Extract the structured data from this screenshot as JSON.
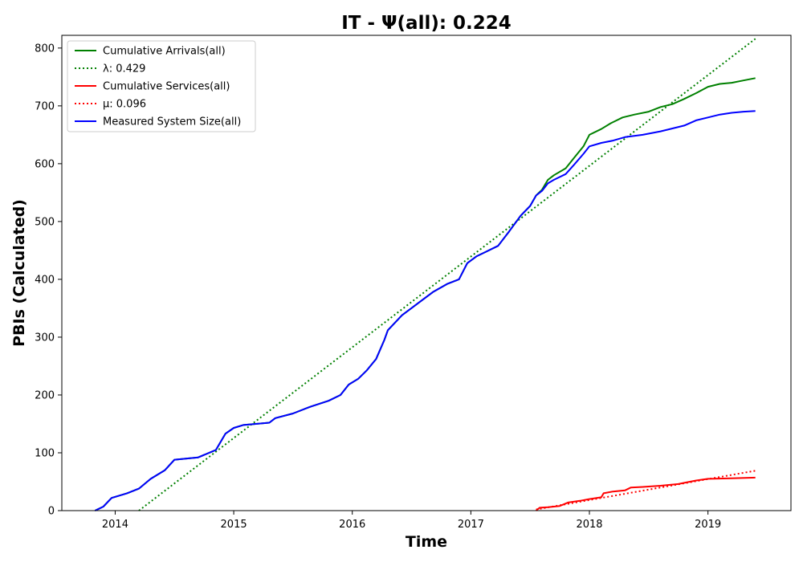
{
  "chart_data": {
    "type": "line",
    "title": "IT -  Ψ(all): 0.224",
    "xlabel": "Time",
    "ylabel": "PBIs (Calculated)",
    "xlim": [
      2013.55,
      2019.7
    ],
    "ylim": [
      0,
      822
    ],
    "x_ticks": [
      2014,
      2015,
      2016,
      2017,
      2018,
      2019
    ],
    "x_tick_labels": [
      "2014",
      "2015",
      "2016",
      "2017",
      "2018",
      "2019"
    ],
    "y_ticks": [
      0,
      100,
      200,
      300,
      400,
      500,
      600,
      700,
      800
    ],
    "y_tick_labels": [
      "0",
      "100",
      "200",
      "300",
      "400",
      "500",
      "600",
      "700",
      "800"
    ],
    "grid": false,
    "legend_position": "upper-left",
    "series": [
      {
        "name": "Cumulative Arrivals(all)",
        "color": "#008000",
        "style": "solid",
        "points": [
          [
            2013.83,
            0
          ],
          [
            2013.9,
            7
          ],
          [
            2013.97,
            22
          ],
          [
            2014.1,
            30
          ],
          [
            2014.2,
            38
          ],
          [
            2014.3,
            55
          ],
          [
            2014.42,
            70
          ],
          [
            2014.5,
            88
          ],
          [
            2014.7,
            92
          ],
          [
            2014.85,
            105
          ],
          [
            2014.93,
            133
          ],
          [
            2015.0,
            143
          ],
          [
            2015.08,
            148
          ],
          [
            2015.3,
            152
          ],
          [
            2015.35,
            160
          ],
          [
            2015.5,
            168
          ],
          [
            2015.65,
            180
          ],
          [
            2015.8,
            190
          ],
          [
            2015.9,
            200
          ],
          [
            2015.97,
            218
          ],
          [
            2016.05,
            228
          ],
          [
            2016.12,
            242
          ],
          [
            2016.2,
            262
          ],
          [
            2016.27,
            295
          ],
          [
            2016.3,
            312
          ],
          [
            2016.42,
            338
          ],
          [
            2016.55,
            358
          ],
          [
            2016.68,
            378
          ],
          [
            2016.8,
            392
          ],
          [
            2016.9,
            400
          ],
          [
            2016.97,
            428
          ],
          [
            2017.05,
            440
          ],
          [
            2017.12,
            447
          ],
          [
            2017.23,
            458
          ],
          [
            2017.32,
            482
          ],
          [
            2017.42,
            510
          ],
          [
            2017.5,
            527
          ],
          [
            2017.55,
            545
          ],
          [
            2017.6,
            555
          ],
          [
            2017.65,
            572
          ],
          [
            2017.7,
            580
          ],
          [
            2017.8,
            592
          ],
          [
            2017.87,
            610
          ],
          [
            2017.95,
            630
          ],
          [
            2018.0,
            650
          ],
          [
            2018.1,
            660
          ],
          [
            2018.18,
            670
          ],
          [
            2018.28,
            680
          ],
          [
            2018.38,
            685
          ],
          [
            2018.5,
            690
          ],
          [
            2018.6,
            698
          ],
          [
            2018.7,
            703
          ],
          [
            2018.8,
            712
          ],
          [
            2018.9,
            722
          ],
          [
            2019.0,
            733
          ],
          [
            2019.1,
            738
          ],
          [
            2019.2,
            740
          ],
          [
            2019.3,
            744
          ],
          [
            2019.4,
            748
          ]
        ]
      },
      {
        "name": "λ: 0.429",
        "color": "#008000",
        "style": "dotted",
        "points": [
          [
            2014.2,
            0
          ],
          [
            2019.4,
            816
          ]
        ]
      },
      {
        "name": "Cumulative Services(all)",
        "color": "#ff0000",
        "style": "solid",
        "points": [
          [
            2017.55,
            0
          ],
          [
            2017.58,
            5
          ],
          [
            2017.65,
            6
          ],
          [
            2017.75,
            8
          ],
          [
            2017.82,
            14
          ],
          [
            2017.92,
            17
          ],
          [
            2018.0,
            20
          ],
          [
            2018.1,
            23
          ],
          [
            2018.12,
            30
          ],
          [
            2018.2,
            33
          ],
          [
            2018.3,
            35
          ],
          [
            2018.35,
            40
          ],
          [
            2018.45,
            41
          ],
          [
            2018.6,
            43
          ],
          [
            2018.75,
            46
          ],
          [
            2018.8,
            48
          ],
          [
            2018.9,
            52
          ],
          [
            2019.0,
            55
          ],
          [
            2019.2,
            56
          ],
          [
            2019.4,
            57
          ]
        ]
      },
      {
        "name": "μ: 0.096",
        "color": "#ff0000",
        "style": "dotted",
        "points": [
          [
            2017.55,
            2
          ],
          [
            2019.4,
            69
          ]
        ]
      },
      {
        "name": "Measured System Size(all)",
        "color": "#0000ff",
        "style": "solid",
        "points": [
          [
            2013.83,
            0
          ],
          [
            2013.9,
            7
          ],
          [
            2013.97,
            22
          ],
          [
            2014.1,
            30
          ],
          [
            2014.2,
            38
          ],
          [
            2014.3,
            55
          ],
          [
            2014.42,
            70
          ],
          [
            2014.5,
            88
          ],
          [
            2014.7,
            92
          ],
          [
            2014.85,
            105
          ],
          [
            2014.93,
            133
          ],
          [
            2015.0,
            143
          ],
          [
            2015.08,
            148
          ],
          [
            2015.3,
            152
          ],
          [
            2015.35,
            160
          ],
          [
            2015.5,
            168
          ],
          [
            2015.65,
            180
          ],
          [
            2015.8,
            190
          ],
          [
            2015.9,
            200
          ],
          [
            2015.97,
            218
          ],
          [
            2016.05,
            228
          ],
          [
            2016.12,
            242
          ],
          [
            2016.2,
            262
          ],
          [
            2016.27,
            295
          ],
          [
            2016.3,
            312
          ],
          [
            2016.42,
            338
          ],
          [
            2016.55,
            358
          ],
          [
            2016.68,
            378
          ],
          [
            2016.8,
            392
          ],
          [
            2016.9,
            400
          ],
          [
            2016.97,
            428
          ],
          [
            2017.05,
            440
          ],
          [
            2017.12,
            447
          ],
          [
            2017.23,
            458
          ],
          [
            2017.32,
            482
          ],
          [
            2017.42,
            510
          ],
          [
            2017.5,
            527
          ],
          [
            2017.55,
            545
          ],
          [
            2017.6,
            553
          ],
          [
            2017.65,
            566
          ],
          [
            2017.7,
            572
          ],
          [
            2017.8,
            582
          ],
          [
            2017.87,
            598
          ],
          [
            2017.95,
            617
          ],
          [
            2018.0,
            630
          ],
          [
            2018.1,
            636
          ],
          [
            2018.2,
            640
          ],
          [
            2018.3,
            646
          ],
          [
            2018.45,
            650
          ],
          [
            2018.6,
            656
          ],
          [
            2018.7,
            661
          ],
          [
            2018.8,
            666
          ],
          [
            2018.9,
            675
          ],
          [
            2019.0,
            680
          ],
          [
            2019.1,
            685
          ],
          [
            2019.2,
            688
          ],
          [
            2019.3,
            690
          ],
          [
            2019.4,
            691
          ]
        ]
      }
    ]
  }
}
